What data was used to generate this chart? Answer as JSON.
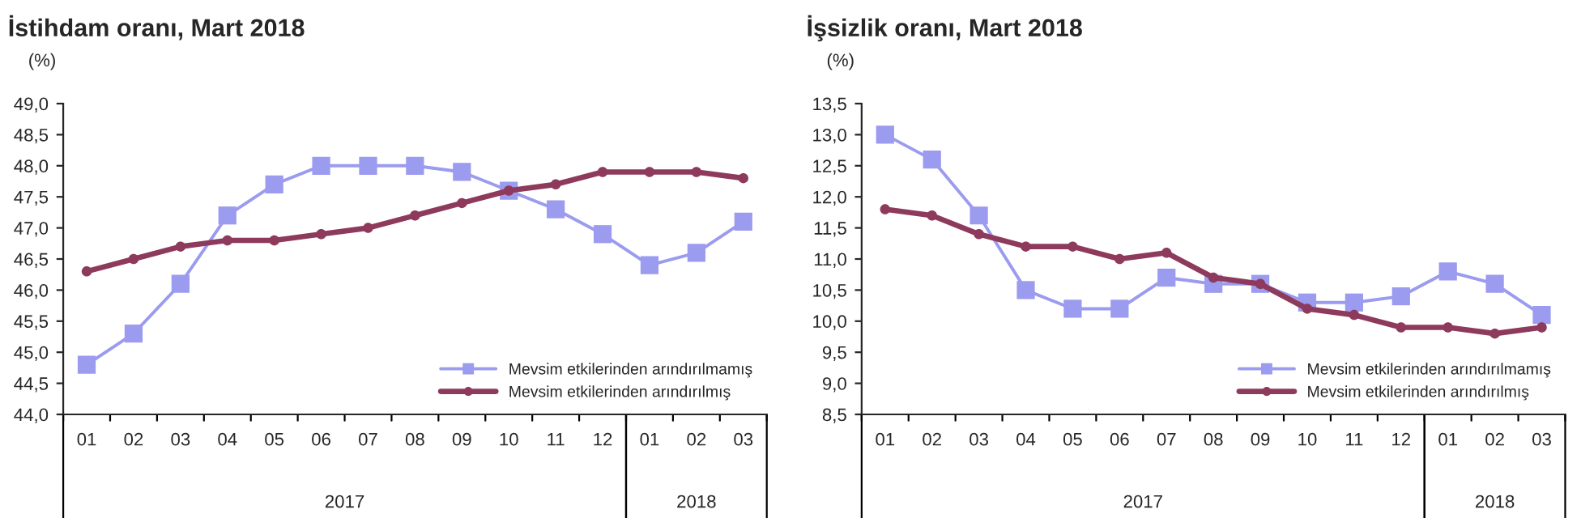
{
  "chart_data": [
    {
      "type": "line",
      "title": "İstihdam oranı, Mart 2018",
      "ylabel": "(%)",
      "categories": [
        "01",
        "02",
        "03",
        "04",
        "05",
        "06",
        "07",
        "08",
        "09",
        "10",
        "11",
        "12",
        "01",
        "02",
        "03"
      ],
      "series": [
        {
          "name": "Mevsim etkilerinden arındırılmamış",
          "color": "#9b9bef",
          "marker": "square",
          "values": [
            44.8,
            45.3,
            46.1,
            47.2,
            47.7,
            48.0,
            48.0,
            48.0,
            47.9,
            47.6,
            47.3,
            46.9,
            46.4,
            46.6,
            47.1
          ]
        },
        {
          "name": "Mevsim etkilerinden arındırılmış",
          "color": "#8e3a5c",
          "marker": "circle",
          "values": [
            46.3,
            46.5,
            46.7,
            46.8,
            46.8,
            46.9,
            47.0,
            47.2,
            47.4,
            47.6,
            47.7,
            47.9,
            47.9,
            47.9,
            47.8
          ]
        }
      ],
      "ylim": [
        44,
        49
      ],
      "yticks": [
        {
          "value": 44,
          "label": "44,0"
        },
        {
          "value": 44.5,
          "label": "44,5"
        },
        {
          "value": 45,
          "label": "45,0"
        },
        {
          "value": 45.5,
          "label": "45,5"
        },
        {
          "value": 46,
          "label": "46,0"
        },
        {
          "value": 46.5,
          "label": "46,5"
        },
        {
          "value": 47,
          "label": "47,0"
        },
        {
          "value": 47.5,
          "label": "47,5"
        },
        {
          "value": 48,
          "label": "48,0"
        },
        {
          "value": 48.5,
          "label": "48,5"
        },
        {
          "value": 49,
          "label": "49,0"
        }
      ],
      "annotations": [
        "2017",
        "2018"
      ],
      "legend": "bottom right",
      "grid": false
    },
    {
      "type": "line",
      "title": "İşsizlik oranı, Mart 2018",
      "ylabel": "(%)",
      "categories": [
        "01",
        "02",
        "03",
        "04",
        "05",
        "06",
        "07",
        "08",
        "09",
        "10",
        "11",
        "12",
        "01",
        "02",
        "03"
      ],
      "series": [
        {
          "name": "Mevsim etkilerinden arındırılmamış",
          "color": "#9b9bef",
          "marker": "square",
          "values": [
            13.0,
            12.6,
            11.7,
            10.5,
            10.2,
            10.2,
            10.7,
            10.6,
            10.6,
            10.3,
            10.3,
            10.4,
            10.8,
            10.6,
            10.1
          ]
        },
        {
          "name": "Mevsim etkilerinden arındırılmış",
          "color": "#8e3a5c",
          "marker": "circle",
          "values": [
            11.8,
            11.7,
            11.4,
            11.2,
            11.2,
            11.0,
            11.1,
            10.7,
            10.6,
            10.2,
            10.1,
            9.9,
            9.9,
            9.8,
            9.9
          ]
        }
      ],
      "ylim": [
        8.5,
        13.5
      ],
      "yticks": [
        {
          "value": 8.5,
          "label": "8,5"
        },
        {
          "value": 9,
          "label": "9,0"
        },
        {
          "value": 9.5,
          "label": "9,5"
        },
        {
          "value": 10,
          "label": "10,0"
        },
        {
          "value": 10.5,
          "label": "10,5"
        },
        {
          "value": 11,
          "label": "11,0"
        },
        {
          "value": 11.5,
          "label": "11,5"
        },
        {
          "value": 12,
          "label": "12,0"
        },
        {
          "value": 12.5,
          "label": "12,5"
        },
        {
          "value": 13,
          "label": "13,0"
        },
        {
          "value": 13.5,
          "label": "13,5"
        }
      ],
      "annotations": [
        "2017",
        "2018"
      ],
      "legend": "bottom right",
      "grid": false
    }
  ]
}
